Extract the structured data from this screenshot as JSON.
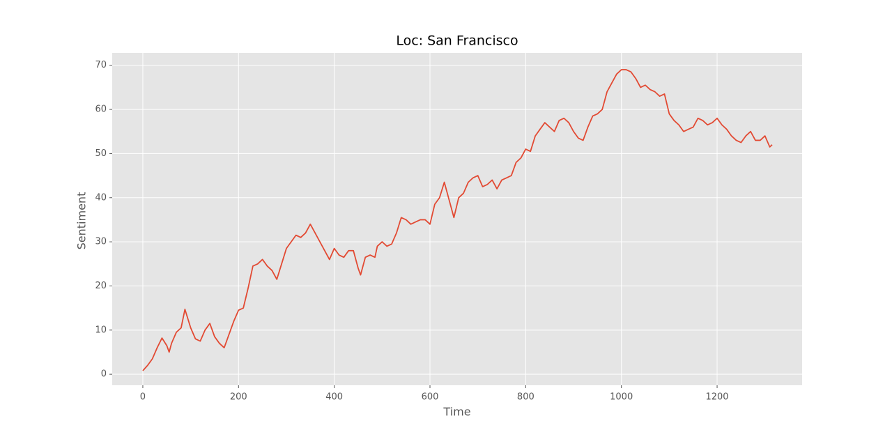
{
  "chart_data": {
    "type": "line",
    "title": "Loc: San Francisco",
    "x_label": "Time",
    "y_label": "Sentiment",
    "x": [
      0,
      10,
      20,
      30,
      40,
      50,
      55,
      60,
      70,
      80,
      88,
      100,
      110,
      120,
      130,
      140,
      150,
      160,
      170,
      180,
      190,
      200,
      210,
      220,
      230,
      240,
      250,
      260,
      270,
      280,
      290,
      300,
      310,
      320,
      330,
      340,
      350,
      360,
      370,
      380,
      390,
      400,
      410,
      420,
      430,
      440,
      450,
      455,
      465,
      475,
      485,
      490,
      500,
      510,
      520,
      530,
      540,
      550,
      560,
      570,
      580,
      590,
      600,
      610,
      620,
      630,
      640,
      650,
      660,
      670,
      680,
      690,
      700,
      710,
      720,
      730,
      740,
      750,
      760,
      770,
      780,
      790,
      800,
      810,
      820,
      830,
      840,
      850,
      860,
      870,
      880,
      890,
      900,
      910,
      920,
      930,
      940,
      950,
      960,
      970,
      980,
      990,
      1000,
      1010,
      1020,
      1030,
      1040,
      1050,
      1060,
      1070,
      1080,
      1090,
      1100,
      1110,
      1120,
      1130,
      1140,
      1150,
      1160,
      1170,
      1180,
      1190,
      1200,
      1210,
      1220,
      1230,
      1240,
      1250,
      1260,
      1270,
      1280,
      1290,
      1300,
      1310,
      1315
    ],
    "series": [
      {
        "name": "Sentiment",
        "color": "#e24a33",
        "values": [
          0.8,
          2,
          3.5,
          6,
          8.2,
          6.5,
          5,
          7,
          9.5,
          10.5,
          14.7,
          10.5,
          8,
          7.5,
          10,
          11.5,
          8.5,
          7,
          6,
          9,
          12,
          14.5,
          15,
          19.5,
          24.5,
          25,
          26,
          24.5,
          23.5,
          21.5,
          25,
          28.5,
          30,
          31.5,
          31,
          32,
          34,
          32,
          30,
          28,
          26,
          28.5,
          27,
          26.5,
          28,
          28,
          24,
          22.5,
          26.5,
          27,
          26.5,
          29,
          30,
          29,
          29.5,
          32,
          35.5,
          35,
          34,
          34.5,
          35,
          35,
          34,
          38.5,
          40,
          43.5,
          39.5,
          35.5,
          40,
          41,
          43.5,
          44.5,
          45,
          42.5,
          43,
          44,
          42,
          44,
          44.5,
          45,
          48,
          49,
          51,
          50.5,
          54,
          55.5,
          57,
          56,
          55,
          57.5,
          58,
          57,
          55,
          53.5,
          53,
          56,
          58.5,
          59,
          60,
          64,
          66,
          68,
          69,
          69,
          68.5,
          67,
          65,
          65.5,
          64.5,
          64,
          63,
          63.5,
          59,
          57.5,
          56.5,
          55,
          55.5,
          56,
          58,
          57.5,
          56.5,
          57,
          58,
          56.5,
          55.5,
          54,
          53,
          52.5,
          54,
          55,
          53,
          53,
          54,
          51.5,
          52
        ]
      }
    ],
    "xlim": [
      -64,
      1377.6
    ],
    "ylim": [
      -2.5,
      72.8
    ],
    "xticks": [
      0,
      200,
      400,
      600,
      800,
      1000,
      1200
    ],
    "yticks": [
      0,
      10,
      20,
      30,
      40,
      50,
      60,
      70
    ],
    "grid": true
  }
}
